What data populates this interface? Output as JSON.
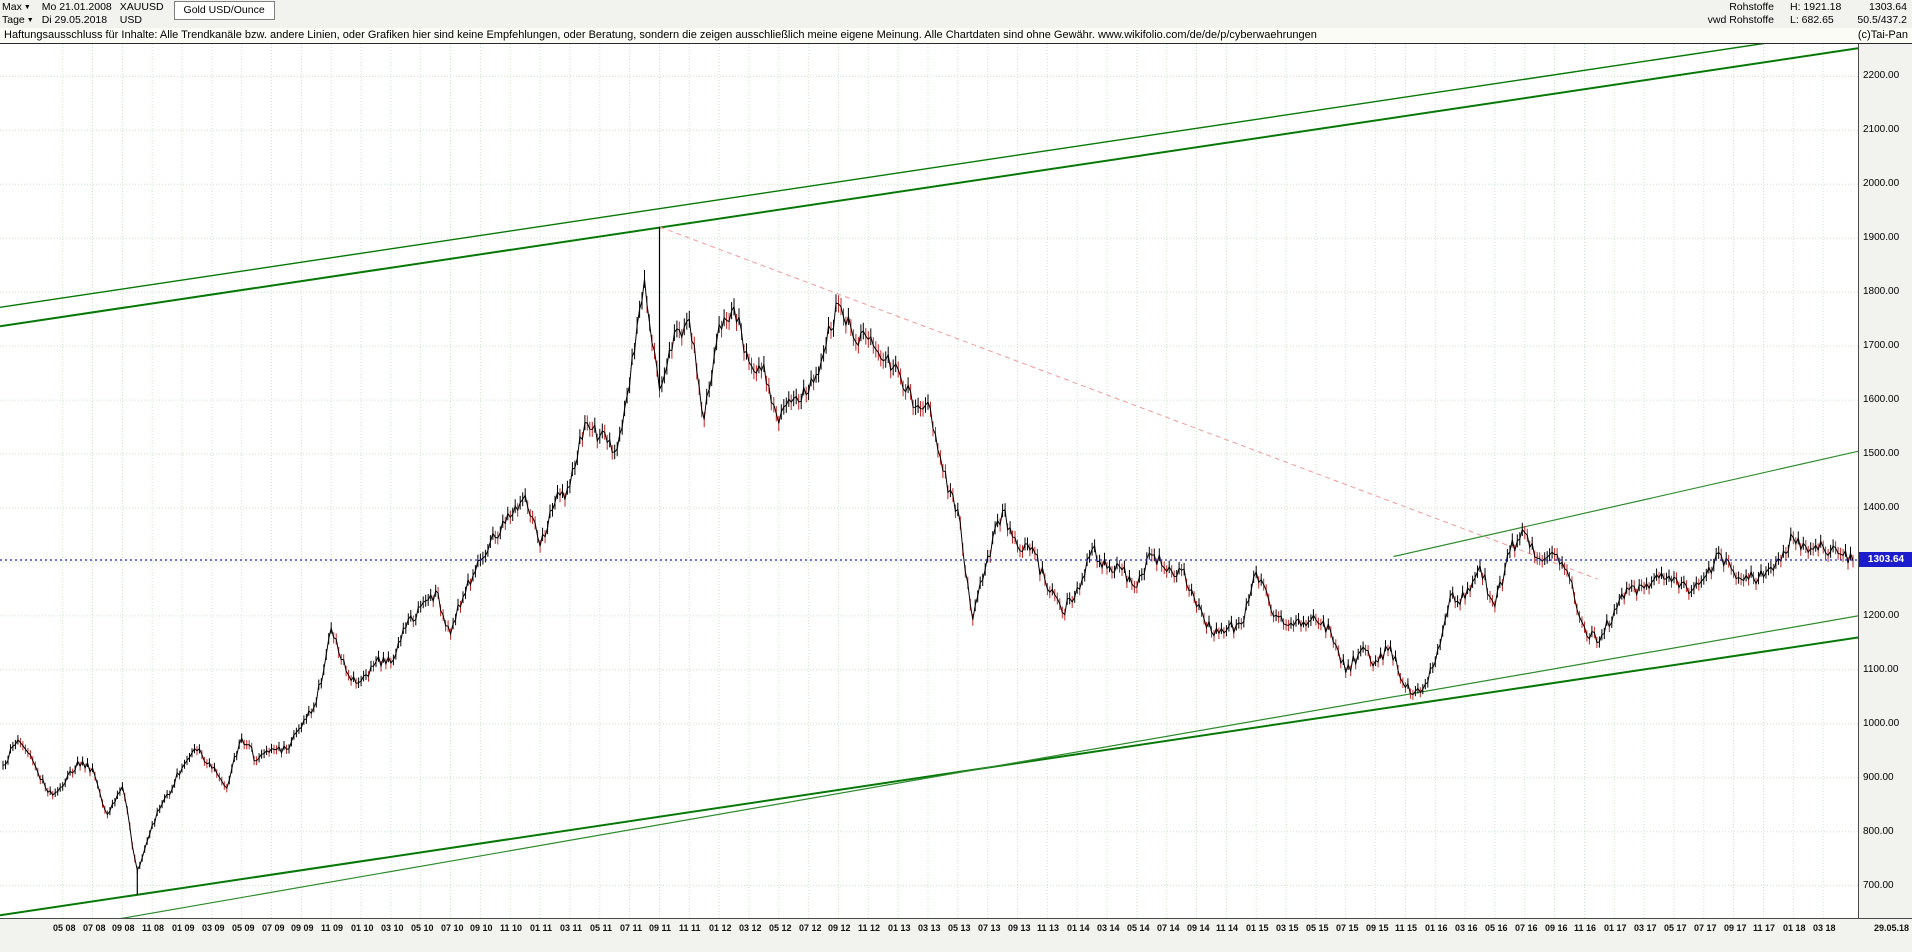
{
  "header": {
    "range_label": "Max",
    "start_date": "Mo 21.01.2008",
    "symbol": "XAUUSD",
    "instrument_title": "Gold USD/Ounce",
    "period_label": "Tage",
    "end_date": "Di 29.05.2018",
    "currency": "USD",
    "group": "Rohstoffe",
    "data_source": "vwd Rohstoffe",
    "high": "H: 1921.18",
    "low": "L: 682.65",
    "last_price": "1303.64",
    "change": "50.5/437.2"
  },
  "disclaimer": {
    "text": "Haftungsausschluss für Inhalte: Alle Trendkanäle bzw. andere Linien, oder Grafiken hier sind keine Empfehlungen, oder Beratung, sondern die zeigen ausschließlich meine eigene Meinung. Alle Chartdaten sind ohne Gewähr.  www.wikifolio.com/de/de/p/cyberwaehrungen",
    "copyright": "(c)Tai-Pan"
  },
  "chart_data": {
    "type": "candlestick",
    "title": "Gold USD/Ounce",
    "symbol": "XAUUSD",
    "currency": "USD",
    "period": "Tage",
    "date_range": [
      "21.01.2008",
      "29.05.2018"
    ],
    "ylim": [
      640,
      2260
    ],
    "y_ticks": [
      "2200.00",
      "2100.00",
      "2000.00",
      "1900.00",
      "1800.00",
      "1700.00",
      "1600.00",
      "1500.00",
      "1400.00",
      "1300.00",
      "1200.00",
      "1100.00",
      "1000.00",
      "900.00",
      "800.00",
      "700.00"
    ],
    "x_labels": [
      "05 08",
      "07 08",
      "09 08",
      "11 08",
      "01 09",
      "03 09",
      "05 09",
      "07 09",
      "09 09",
      "11 09",
      "01 10",
      "03 10",
      "05 10",
      "07 10",
      "09 10",
      "11 10",
      "01 11",
      "03 11",
      "05 11",
      "07 11",
      "09 11",
      "11 11",
      "01 12",
      "03 12",
      "05 12",
      "07 12",
      "09 12",
      "11 12",
      "01 13",
      "03 13",
      "05 13",
      "07 13",
      "09 13",
      "11 13",
      "01 14",
      "03 14",
      "05 14",
      "07 14",
      "09 14",
      "11 14",
      "01 15",
      "03 15",
      "05 15",
      "07 15",
      "09 15",
      "11 15",
      "01 16",
      "03 16",
      "05 16",
      "07 16",
      "09 16",
      "11 16",
      "01 17",
      "03 17",
      "05 17",
      "07 17",
      "09 17",
      "11 17",
      "01 18",
      "03 18"
    ],
    "x_label_last": "29.05.18",
    "first_tick_month": 4,
    "tick_step": 2,
    "close": [
      923,
      971,
      933,
      871,
      885,
      930,
      918,
      833,
      884,
      730,
      814,
      869,
      919,
      952,
      916,
      883,
      975,
      934,
      953,
      955,
      995,
      1040,
      1175,
      1096,
      1078,
      1118,
      1115,
      1179,
      1215,
      1244,
      1169,
      1246,
      1307,
      1346,
      1385,
      1421,
      1327,
      1411,
      1439,
      1556,
      1536,
      1500,
      1628,
      1826,
      1620,
      1722,
      1746,
      1564,
      1737,
      1770,
      1668,
      1664,
      1558,
      1604,
      1615,
      1691,
      1776,
      1720,
      1715,
      1676,
      1661,
      1588,
      1598,
      1469,
      1394,
      1192,
      1311,
      1394,
      1327,
      1324,
      1253,
      1205,
      1251,
      1326,
      1291,
      1288,
      1250,
      1315,
      1285,
      1287,
      1216,
      1173,
      1175,
      1184,
      1283,
      1213,
      1184,
      1184,
      1191,
      1172,
      1095,
      1135,
      1115,
      1142,
      1065,
      1060,
      1118,
      1234,
      1232,
      1292,
      1215,
      1322,
      1351,
      1309,
      1316,
      1272,
      1178,
      1152,
      1210,
      1248,
      1249,
      1268,
      1269,
      1242,
      1267,
      1320,
      1280,
      1271,
      1275,
      1303,
      1345,
      1318,
      1325,
      1315,
      1304
    ],
    "period_high": 1921.18,
    "period_low": 682.65,
    "extremes": {
      "high_index": 44,
      "high_value": 1921.18,
      "low_index": 9,
      "low_value": 682.65
    },
    "last_price": 1303.64,
    "last_price_label": "1303.64",
    "current_price_line": {
      "value": 1303.64,
      "color": "#2020c8"
    },
    "trendlines": [
      {
        "name": "upper-channel-line-outer",
        "x1": 0,
        "v1": 1772,
        "x2": 1,
        "v2": 2287,
        "color": "#067806",
        "width": 1.4
      },
      {
        "name": "upper-channel-line",
        "x1": 0,
        "v1": 1737,
        "x2": 1,
        "v2": 2252,
        "color": "#067806",
        "width": 2
      },
      {
        "name": "lower-channel-line",
        "x1": 0,
        "v1": 645,
        "x2": 1,
        "v2": 1160,
        "color": "#067806",
        "width": 2
      },
      {
        "name": "lower-support-line",
        "x1": 0,
        "v1": 600,
        "x2": 1,
        "v2": 1200,
        "color": "#2e8b2e",
        "width": 1.2
      },
      {
        "name": "minor-resistance-ray",
        "x1": 0.75,
        "v1": 1310,
        "x2": 1,
        "v2": 1505,
        "color": "#2e8b2e",
        "width": 1.2
      },
      {
        "name": "downtrend-line-dashed",
        "x1": 0.355,
        "v1": 1921,
        "x2": 0.86,
        "v2": 1268,
        "color": "#f09a9a",
        "width": 1,
        "dash": "5 4"
      }
    ],
    "candle_up_color": "#000000",
    "candle_down_color": "#c22525",
    "grid_color": "#cbe7cb",
    "plot_bg": "#ffffff",
    "grid": true,
    "legend": false
  }
}
